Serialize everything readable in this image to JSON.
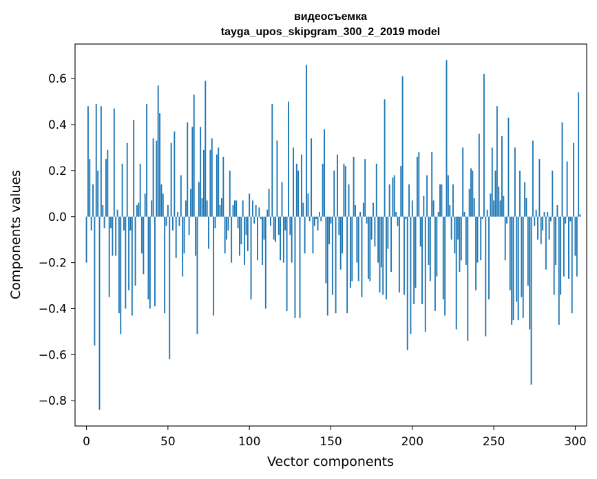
{
  "chart_data": {
    "type": "bar",
    "title": "видеосъемка",
    "subtitle": "tayga_upos_skipgram_300_2_2019 model",
    "xlabel": "Vector components",
    "ylabel": "Components values",
    "xlim": [
      -7,
      307
    ],
    "ylim": [
      -0.91,
      0.75
    ],
    "x_ticks": [
      0,
      50,
      100,
      150,
      200,
      250,
      300
    ],
    "x_tick_labels": [
      "0",
      "50",
      "100",
      "150",
      "200",
      "250",
      "300"
    ],
    "y_ticks": [
      -0.8,
      -0.6,
      -0.4,
      -0.2,
      0.0,
      0.2,
      0.4,
      0.6
    ],
    "y_tick_labels": [
      "−0.8",
      "−0.6",
      "−0.4",
      "−0.2",
      "0.0",
      "0.2",
      "0.4",
      "0.6"
    ],
    "bar_color": "#1f77b4",
    "grid": false,
    "values": [
      -0.2,
      0.48,
      0.25,
      -0.06,
      0.14,
      -0.56,
      0.49,
      0.2,
      -0.84,
      0.48,
      0.05,
      -0.05,
      0.25,
      0.29,
      -0.35,
      -0.05,
      -0.17,
      0.47,
      -0.17,
      0.03,
      -0.42,
      -0.51,
      0.23,
      -0.06,
      -0.4,
      0.32,
      -0.32,
      -0.06,
      -0.43,
      0.42,
      -0.3,
      0.05,
      0.06,
      0.23,
      -0.16,
      -0.25,
      0.1,
      0.49,
      -0.36,
      -0.4,
      0.07,
      0.34,
      -0.39,
      0.33,
      0.57,
      0.45,
      0.14,
      0.1,
      -0.42,
      -0.04,
      0.05,
      -0.62,
      0.32,
      -0.06,
      0.37,
      -0.18,
      0.02,
      -0.04,
      0.18,
      -0.26,
      -0.16,
      0.07,
      0.41,
      -0.08,
      0.12,
      0.39,
      0.53,
      -0.17,
      -0.51,
      0.15,
      0.39,
      0.08,
      0.29,
      0.59,
      0.07,
      -0.14,
      0.29,
      0.34,
      -0.43,
      -0.05,
      0.27,
      0.3,
      0.05,
      0.08,
      0.26,
      -0.16,
      -0.1,
      -0.06,
      0.2,
      -0.2,
      0.05,
      0.07,
      0.07,
      -0.05,
      -0.17,
      -0.12,
      0.07,
      -0.21,
      -0.08,
      -0.15,
      0.1,
      -0.36,
      0.07,
      -0.03,
      0.05,
      -0.19,
      0.04,
      -0.01,
      -0.21,
      -0.1,
      -0.4,
      0.03,
      0.12,
      -0.04,
      0.49,
      -0.1,
      -0.11,
      0.33,
      -0.08,
      -0.19,
      0.15,
      -0.2,
      -0.06,
      -0.41,
      0.5,
      -0.08,
      -0.2,
      0.3,
      -0.44,
      0.23,
      0.2,
      -0.44,
      0.27,
      0.06,
      -0.16,
      0.66,
      0.1,
      -0.02,
      0.34,
      -0.16,
      -0.04,
      -0.01,
      -0.06,
      0.02,
      -0.02,
      0.23,
      0.38,
      -0.29,
      -0.43,
      -0.12,
      -0.03,
      -0.34,
      0.2,
      -0.42,
      0.27,
      -0.08,
      -0.23,
      -0.16,
      0.23,
      0.22,
      -0.42,
      0.14,
      -0.31,
      -0.28,
      0.26,
      0.05,
      -0.2,
      -0.28,
      0.02,
      -0.35,
      0.06,
      0.25,
      -0.03,
      -0.27,
      -0.28,
      -0.1,
      0.06,
      -0.13,
      0.23,
      -0.2,
      -0.33,
      -0.22,
      -0.34,
      0.51,
      -0.36,
      -0.14,
      0.14,
      -0.24,
      0.17,
      0.18,
      0.02,
      -0.04,
      -0.33,
      0.22,
      0.61,
      -0.34,
      -0.01,
      -0.58,
      0.14,
      -0.51,
      0.07,
      -0.38,
      -0.31,
      0.26,
      0.28,
      -0.13,
      -0.38,
      0.09,
      -0.5,
      0.18,
      -0.21,
      -0.28,
      0.28,
      0.07,
      -0.41,
      -0.26,
      0.02,
      0.14,
      0.14,
      -0.36,
      -0.43,
      0.68,
      0.18,
      0.05,
      -0.1,
      0.14,
      -0.16,
      -0.49,
      -0.1,
      -0.24,
      -0.19,
      0.3,
      0.02,
      -0.21,
      -0.54,
      0.12,
      0.21,
      0.2,
      0.08,
      -0.32,
      -0.2,
      0.36,
      -0.19,
      -0.01,
      0.62,
      -0.52,
      0.03,
      -0.36,
      0.1,
      0.3,
      0.07,
      0.2,
      0.48,
      0.13,
      0.07,
      0.35,
      0.09,
      -0.19,
      -0.03,
      0.43,
      -0.32,
      -0.47,
      -0.45,
      0.3,
      -0.37,
      -0.45,
      0.2,
      -0.35,
      -0.44,
      0.15,
      0.08,
      -0.3,
      -0.49,
      -0.73,
      0.33,
      -0.04,
      0.03,
      -0.1,
      0.25,
      -0.12,
      -0.06,
      0.02,
      -0.23,
      0.02,
      -0.1,
      -0.02,
      0.2,
      -0.34,
      -0.21,
      0.05,
      -0.47,
      -0.34,
      0.41,
      -0.26,
      -0.03,
      0.24,
      -0.27,
      -0.02,
      -0.42,
      0.32,
      -0.17,
      -0.26,
      0.54,
      0.01
    ]
  }
}
